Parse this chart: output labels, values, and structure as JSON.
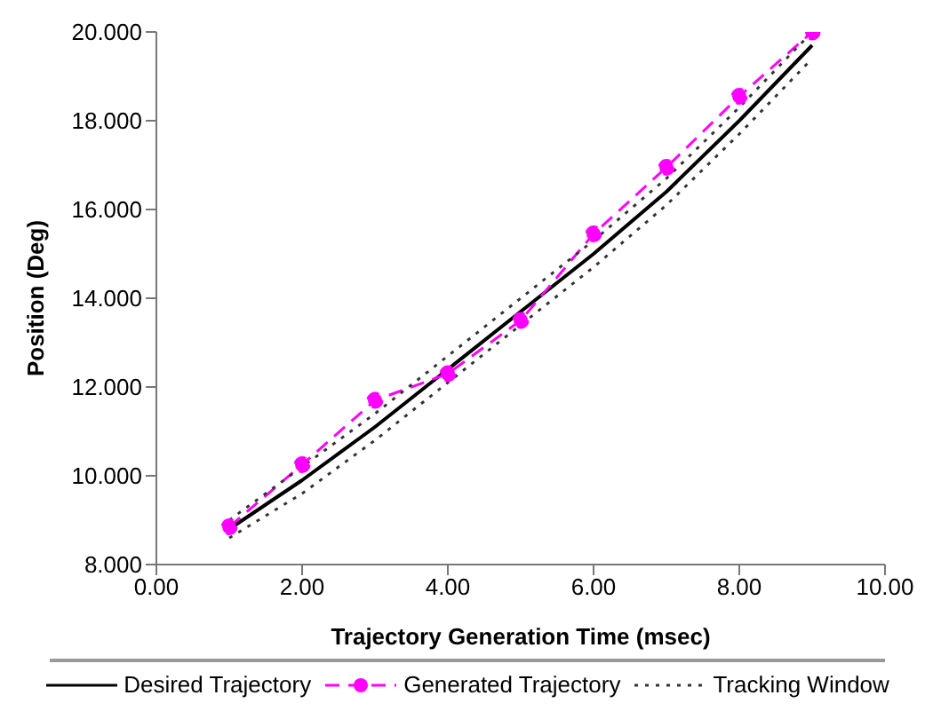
{
  "chart_data": {
    "type": "line",
    "xlabel": "Trajectory Generation Time (msec)",
    "ylabel": "Position (Deg)",
    "x": [
      1,
      2,
      3,
      4,
      5,
      6,
      7,
      8,
      9
    ],
    "xlim": [
      0,
      10
    ],
    "xticks": [
      {
        "value": 0,
        "label": "0.00"
      },
      {
        "value": 2,
        "label": "2.00"
      },
      {
        "value": 4,
        "label": "4.00"
      },
      {
        "value": 6,
        "label": "6.00"
      },
      {
        "value": 8,
        "label": "8.00"
      },
      {
        "value": 10,
        "label": "10.00"
      }
    ],
    "ylim": [
      8,
      20
    ],
    "yticks": [
      {
        "value": 8,
        "label": "8.000"
      },
      {
        "value": 10,
        "label": "10.000"
      },
      {
        "value": 12,
        "label": "12.000"
      },
      {
        "value": 14,
        "label": "14.000"
      },
      {
        "value": 16,
        "label": "16.000"
      },
      {
        "value": 18,
        "label": "18.000"
      },
      {
        "value": 20,
        "label": "20.000"
      }
    ],
    "grid": false,
    "legend": "bottom",
    "series": [
      {
        "name": "Desired Trajectory",
        "color": "#000000",
        "line_style": "solid",
        "marker": "none",
        "values": [
          8.8,
          9.9,
          11.1,
          12.4,
          13.7,
          15.0,
          16.4,
          18.0,
          19.7
        ]
      },
      {
        "name": "Generated Trajectory",
        "color": "#ff00ff",
        "line_style": "dashed",
        "marker": "circle",
        "values": [
          8.85,
          10.25,
          11.7,
          12.3,
          13.5,
          15.45,
          16.95,
          18.55,
          20.0
        ]
      },
      {
        "name": "Tracking Window",
        "color": "#333333",
        "line_style": "dotted",
        "marker": "none",
        "values": [
          9.0,
          10.2,
          11.4,
          12.7,
          14.0,
          15.3,
          16.7,
          18.3,
          20.0
        ]
      },
      {
        "color": "#333333",
        "line_style": "dotted",
        "marker": "none",
        "values": [
          8.6,
          9.6,
          10.8,
          12.1,
          13.4,
          14.7,
          16.1,
          17.7,
          19.4
        ]
      }
    ]
  }
}
